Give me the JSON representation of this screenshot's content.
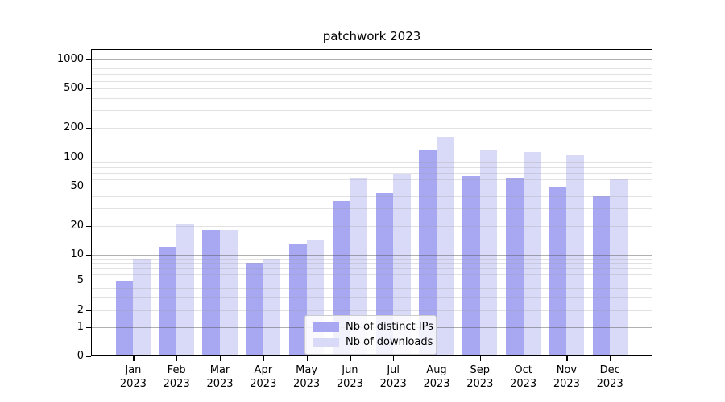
{
  "title": "patchwork 2023",
  "legend": {
    "items": [
      {
        "label": "Nb of distinct IPs",
        "color": "#a7a7f2"
      },
      {
        "label": "Nb of downloads",
        "color": "#d9d9f8"
      }
    ]
  },
  "chart_data": {
    "type": "bar",
    "title": "patchwork 2023",
    "categories": [
      "Jan 2023",
      "Feb 2023",
      "Mar 2023",
      "Apr 2023",
      "May 2023",
      "Jun 2023",
      "Jul 2023",
      "Aug 2023",
      "Sep 2023",
      "Oct 2023",
      "Nov 2023",
      "Dec 2023"
    ],
    "series": [
      {
        "name": "Nb of distinct IPs",
        "color": "#a7a7f2",
        "values": [
          5,
          12,
          18,
          8,
          13,
          36,
          43,
          118,
          65,
          62,
          50,
          40
        ]
      },
      {
        "name": "Nb of downloads",
        "color": "#d9d9f8",
        "values": [
          9,
          21,
          18,
          9,
          14,
          62,
          67,
          160,
          118,
          114,
          105,
          60
        ]
      }
    ],
    "xlabel": "",
    "ylabel": "",
    "yscale": "symlog",
    "yticks": [
      0,
      1,
      2,
      5,
      10,
      20,
      50,
      100,
      200,
      500,
      1000
    ],
    "ylim": [
      0,
      1250
    ],
    "grid": true,
    "legend_position": "lower center"
  }
}
